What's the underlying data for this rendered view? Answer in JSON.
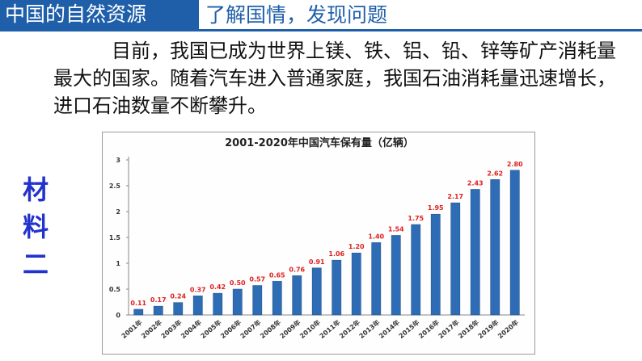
{
  "header": {
    "title": "中国的自然资源",
    "subtitle": "了解国情，发现问题"
  },
  "paragraph": "目前，我国已成为世界上镁、铁、铝、铅、锌等矿产消耗量最大的国家。随着汽车进入普通家庭，我国石油消耗量迅速增长，进口石油数量不断攀升。",
  "side_label": [
    "材",
    "料",
    "二"
  ],
  "colors": {
    "accent": "#1f5faa",
    "bar": "#2e6db5",
    "value_label": "#e02020",
    "side_label": "#2233cc"
  },
  "chart_data": {
    "type": "bar",
    "title": "2001-2020年中国汽车保有量（亿辆）",
    "categories": [
      "2001年",
      "2002年",
      "2003年",
      "2004年",
      "2005年",
      "2006年",
      "2007年",
      "2008年",
      "2009年",
      "2010年",
      "2011年",
      "2012年",
      "2013年",
      "2014年",
      "2015年",
      "2016年",
      "2017年",
      "2018年",
      "2019年",
      "2020年"
    ],
    "values": [
      0.11,
      0.17,
      0.24,
      0.37,
      0.42,
      0.5,
      0.57,
      0.65,
      0.76,
      0.91,
      1.06,
      1.2,
      1.4,
      1.54,
      1.75,
      1.95,
      2.17,
      2.43,
      2.62,
      2.8
    ],
    "value_labels": [
      "0.11",
      "0.17",
      "0.24",
      "0.37",
      "0.42",
      "0.50",
      "0.57",
      "0.65",
      "0.76",
      "0.91",
      "1.06",
      "1.20",
      "1.40",
      "1.54",
      "1.75",
      "1.95",
      "2.17",
      "2.43",
      "2.62",
      "2.80"
    ],
    "yticks": [
      "0",
      "0.5",
      "1",
      "1.5",
      "2",
      "2.5",
      "3"
    ],
    "ylim": [
      0,
      3
    ],
    "xlabel": "",
    "ylabel": "",
    "grid": false
  }
}
